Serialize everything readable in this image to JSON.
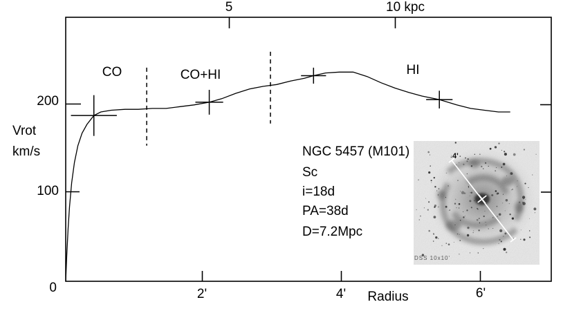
{
  "figure": {
    "bg": "#ffffff",
    "ink": "#000000"
  },
  "y_axis": {
    "title_line1": "Vrot",
    "title_line2": "km/s",
    "tick_200": "200",
    "tick_100": "100",
    "tick_0": "0"
  },
  "x_axis": {
    "title": "Radius",
    "tick_2": "2'",
    "tick_4": "4'",
    "tick_6": "6'"
  },
  "top_axis": {
    "tick_5": "5",
    "tick_10": "10 kpc"
  },
  "annotation": {
    "lines": [
      "NGC 5457 (M101)",
      "Sc",
      "i=18d",
      "PA=38d",
      "D=7.2Mpc"
    ]
  },
  "inset": {
    "scale_label": "4'",
    "caption": "DSS 10x10'"
  },
  "chart_data": {
    "type": "line",
    "xlabel": "Radius",
    "ylabel": "Vrot km/s",
    "x_unit": "arcmin",
    "top_axis_unit": "kpc",
    "xlim_arcmin": [
      0,
      7.0
    ],
    "ylim_kms": [
      0,
      298
    ],
    "x_ticks_arcmin": [
      2,
      4,
      6
    ],
    "y_ticks_kms": [
      0,
      100,
      200
    ],
    "top_ticks_kpc": [
      5,
      10
    ],
    "kpc_per_arcmin": 2.094,
    "distance_Mpc": 7.2,
    "grid": false,
    "regions": [
      "CO",
      "CO+HI",
      "HI"
    ],
    "region_boundaries": [
      {
        "x_arcmin": 1.2,
        "v_min_kms": 153,
        "v_max_kms": 241
      },
      {
        "x_arcmin": 2.98,
        "v_min_kms": 178,
        "v_max_kms": 259
      }
    ],
    "measured_points": [
      {
        "x_arcmin": 0.44,
        "v_kms": 187,
        "xerr_arcmin": 0.33,
        "verr_kms": 23
      },
      {
        "x_arcmin": 2.1,
        "v_kms": 202,
        "xerr_arcmin": 0.2,
        "verr_kms": 14
      },
      {
        "x_arcmin": 3.6,
        "v_kms": 232,
        "xerr_arcmin": 0.18,
        "verr_kms": 9
      },
      {
        "x_arcmin": 5.41,
        "v_kms": 205,
        "xerr_arcmin": 0.19,
        "verr_kms": 10
      }
    ],
    "curve_kms_vs_arcmin": [
      [
        0.035,
        0
      ],
      [
        0.05,
        29
      ],
      [
        0.07,
        60
      ],
      [
        0.09,
        84
      ],
      [
        0.12,
        111
      ],
      [
        0.16,
        134
      ],
      [
        0.21,
        153
      ],
      [
        0.27,
        167
      ],
      [
        0.34,
        177
      ],
      [
        0.44,
        187
      ],
      [
        0.54,
        191
      ],
      [
        0.69,
        193
      ],
      [
        0.89,
        194
      ],
      [
        1.08,
        194
      ],
      [
        1.28,
        195
      ],
      [
        1.48,
        195
      ],
      [
        1.68,
        197
      ],
      [
        1.88,
        199
      ],
      [
        2.1,
        202
      ],
      [
        2.28,
        206
      ],
      [
        2.48,
        212
      ],
      [
        2.68,
        217
      ],
      [
        2.88,
        220
      ],
      [
        3.07,
        222
      ],
      [
        3.27,
        226
      ],
      [
        3.47,
        229
      ],
      [
        3.6,
        232
      ],
      [
        3.77,
        235
      ],
      [
        3.97,
        236
      ],
      [
        4.17,
        236
      ],
      [
        4.37,
        231
      ],
      [
        4.57,
        224
      ],
      [
        4.77,
        218
      ],
      [
        4.97,
        213
      ],
      [
        5.16,
        209
      ],
      [
        5.41,
        205
      ],
      [
        5.66,
        199
      ],
      [
        5.86,
        195
      ],
      [
        6.06,
        193
      ],
      [
        6.26,
        191
      ],
      [
        6.43,
        191
      ]
    ]
  }
}
